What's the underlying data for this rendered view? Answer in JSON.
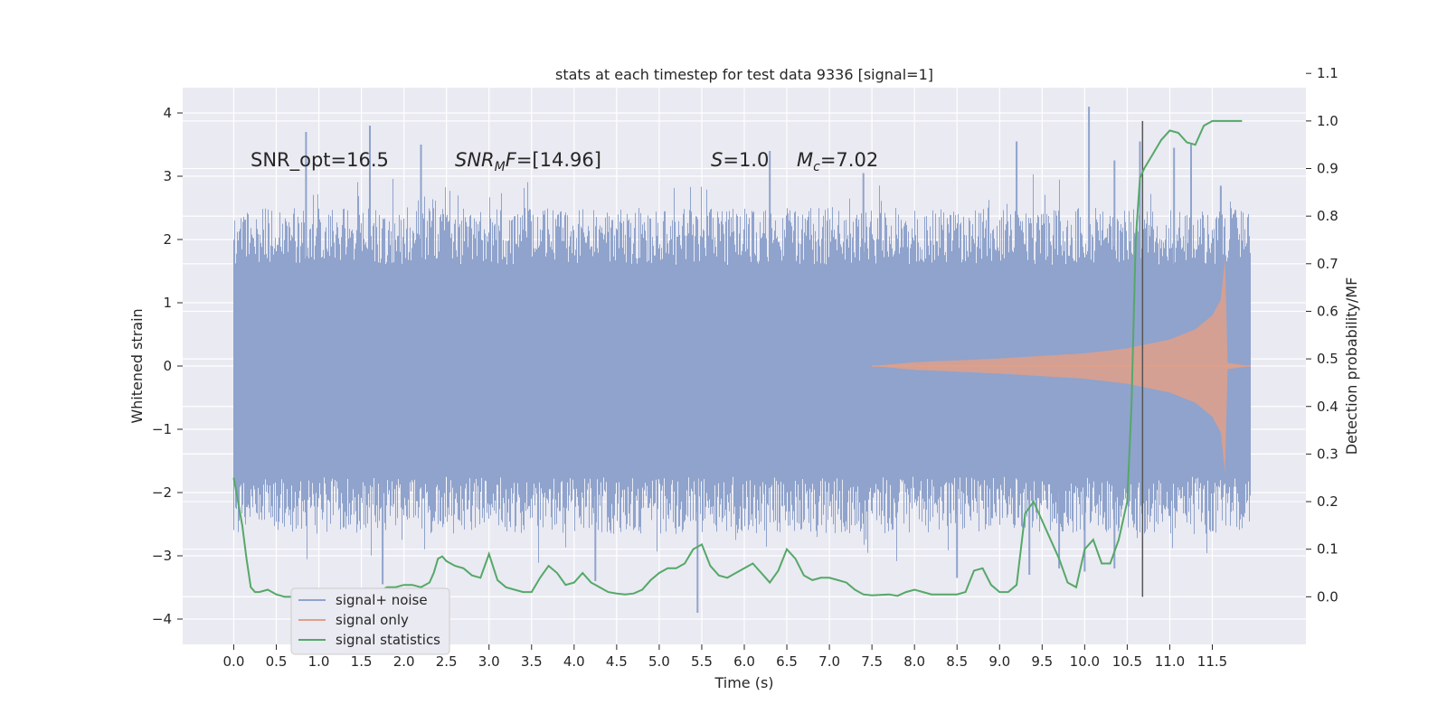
{
  "chart_data": {
    "type": "line",
    "title": "stats at each timestep for test data 9336 [signal=1]",
    "xlabel": "Time (s)",
    "ylabel": "Whitened strain",
    "y2label": "Detection probability/MF",
    "xlim": [
      -0.6,
      12.6
    ],
    "ylim": [
      -4.4,
      4.4
    ],
    "y2lim": [
      -0.1,
      1.07
    ],
    "x_ticks": [
      "0.0",
      "0.5",
      "1.0",
      "1.5",
      "2.0",
      "2.5",
      "3.0",
      "3.5",
      "4.0",
      "4.5",
      "5.0",
      "5.5",
      "6.0",
      "6.5",
      "7.0",
      "7.5",
      "8.0",
      "8.5",
      "9.0",
      "9.5",
      "10.0",
      "10.5",
      "11.0",
      "11.5"
    ],
    "y_ticks": [
      "4",
      "3",
      "2",
      "1",
      "0",
      "−1",
      "−2",
      "−3",
      "−4"
    ],
    "y2_ticks": [
      "1.1",
      "1.0",
      "0.9",
      "0.8",
      "0.7",
      "0.6",
      "0.5",
      "0.4",
      "0.3",
      "0.2",
      "0.1",
      "0.0"
    ],
    "grid": true,
    "legend_placement": "lower-left",
    "annotations": {
      "snr_opt": "SNR_opt=16.5",
      "snr_mf_sym": "SNR",
      "snr_mf_sub": "M",
      "snr_mf_f": "F",
      "snr_mf_val": "=[14.96]",
      "s_sym": "S",
      "s_val": "=1.0",
      "mc_sym": "M",
      "mc_sub": "c",
      "mc_val": "=7.02"
    },
    "vertical_marker_x": 10.68,
    "series": [
      {
        "name": "signal+ noise",
        "color": "#8fa3cc",
        "x_range": [
          0,
          11.95
        ],
        "band_low": -1.5,
        "band_high": 1.35,
        "peaks_up": [
          [
            0.85,
            3.7
          ],
          [
            1.6,
            3.8
          ],
          [
            2.2,
            3.5
          ],
          [
            6.3,
            3.4
          ],
          [
            7.4,
            3.05
          ],
          [
            9.2,
            3.55
          ],
          [
            10.05,
            4.1
          ],
          [
            10.35,
            3.25
          ],
          [
            10.65,
            3.55
          ],
          [
            11.05,
            3.45
          ],
          [
            11.25,
            3.5
          ],
          [
            11.6,
            2.85
          ]
        ],
        "peaks_down": [
          [
            1.75,
            -3.45
          ],
          [
            4.25,
            -3.4
          ],
          [
            5.45,
            -3.9
          ],
          [
            8.5,
            -3.35
          ],
          [
            9.35,
            -3.3
          ],
          [
            9.7,
            -3.2
          ],
          [
            10.0,
            -3.25
          ],
          [
            10.35,
            -3.2
          ]
        ]
      },
      {
        "name": "signal only",
        "color": "#e0a088",
        "envelope": [
          [
            7.5,
            0.0
          ],
          [
            8.0,
            0.06
          ],
          [
            8.5,
            0.09
          ],
          [
            9.0,
            0.12
          ],
          [
            9.5,
            0.16
          ],
          [
            10.0,
            0.2
          ],
          [
            10.5,
            0.28
          ],
          [
            11.0,
            0.42
          ],
          [
            11.3,
            0.58
          ],
          [
            11.5,
            0.8
          ],
          [
            11.6,
            1.05
          ],
          [
            11.65,
            1.7
          ],
          [
            11.68,
            0.05
          ],
          [
            11.95,
            0.0
          ]
        ]
      },
      {
        "name": "signal statistics",
        "color": "#55a868",
        "x": [
          0.0,
          0.05,
          0.1,
          0.15,
          0.2,
          0.25,
          0.3,
          0.4,
          0.5,
          0.6,
          0.7,
          0.8,
          0.9,
          1.0,
          1.1,
          1.2,
          1.3,
          1.4,
          1.5,
          1.6,
          1.7,
          1.8,
          1.9,
          2.0,
          2.1,
          2.2,
          2.3,
          2.35,
          2.4,
          2.45,
          2.5,
          2.6,
          2.7,
          2.8,
          2.9,
          3.0,
          3.1,
          3.2,
          3.3,
          3.4,
          3.5,
          3.6,
          3.7,
          3.8,
          3.9,
          4.0,
          4.1,
          4.2,
          4.3,
          4.4,
          4.5,
          4.6,
          4.7,
          4.8,
          4.9,
          5.0,
          5.1,
          5.2,
          5.3,
          5.4,
          5.5,
          5.6,
          5.7,
          5.8,
          5.9,
          6.0,
          6.1,
          6.2,
          6.3,
          6.4,
          6.5,
          6.6,
          6.7,
          6.8,
          6.9,
          7.0,
          7.1,
          7.2,
          7.3,
          7.4,
          7.5,
          7.6,
          7.7,
          7.8,
          7.9,
          8.0,
          8.1,
          8.2,
          8.3,
          8.4,
          8.5,
          8.6,
          8.7,
          8.8,
          8.9,
          9.0,
          9.1,
          9.2,
          9.3,
          9.4,
          9.5,
          9.6,
          9.7,
          9.8,
          9.9,
          10.0,
          10.1,
          10.2,
          10.3,
          10.4,
          10.5,
          10.55,
          10.6,
          10.65,
          10.7,
          10.8,
          10.9,
          11.0,
          11.1,
          11.2,
          11.3,
          11.4,
          11.5,
          11.6,
          11.7,
          11.8,
          11.85
        ],
        "y": [
          0.25,
          0.2,
          0.15,
          0.08,
          0.02,
          0.01,
          0.01,
          0.015,
          0.005,
          0.0,
          0.0,
          0.0,
          0.0,
          -0.002,
          0.0,
          0.0,
          0.0,
          0.002,
          0.0,
          0.002,
          0.01,
          0.02,
          0.02,
          0.025,
          0.025,
          0.02,
          0.03,
          0.05,
          0.08,
          0.085,
          0.075,
          0.065,
          0.06,
          0.045,
          0.04,
          0.09,
          0.035,
          0.02,
          0.015,
          0.01,
          0.01,
          0.04,
          0.065,
          0.05,
          0.025,
          0.03,
          0.05,
          0.03,
          0.02,
          0.01,
          0.007,
          0.005,
          0.007,
          0.015,
          0.035,
          0.05,
          0.06,
          0.06,
          0.07,
          0.1,
          0.11,
          0.065,
          0.045,
          0.04,
          0.05,
          0.06,
          0.07,
          0.05,
          0.03,
          0.055,
          0.1,
          0.08,
          0.045,
          0.035,
          0.04,
          0.04,
          0.035,
          0.03,
          0.015,
          0.005,
          0.003,
          0.004,
          0.005,
          0.002,
          0.01,
          0.015,
          0.01,
          0.005,
          0.005,
          0.005,
          0.005,
          0.01,
          0.055,
          0.06,
          0.025,
          0.01,
          0.01,
          0.025,
          0.175,
          0.2,
          0.16,
          0.12,
          0.08,
          0.03,
          0.02,
          0.1,
          0.12,
          0.07,
          0.07,
          0.12,
          0.2,
          0.4,
          0.75,
          0.88,
          0.9,
          0.93,
          0.96,
          0.98,
          0.975,
          0.955,
          0.95,
          0.99,
          1.0,
          1.0,
          1.0,
          1.0,
          1.0
        ]
      }
    ]
  }
}
